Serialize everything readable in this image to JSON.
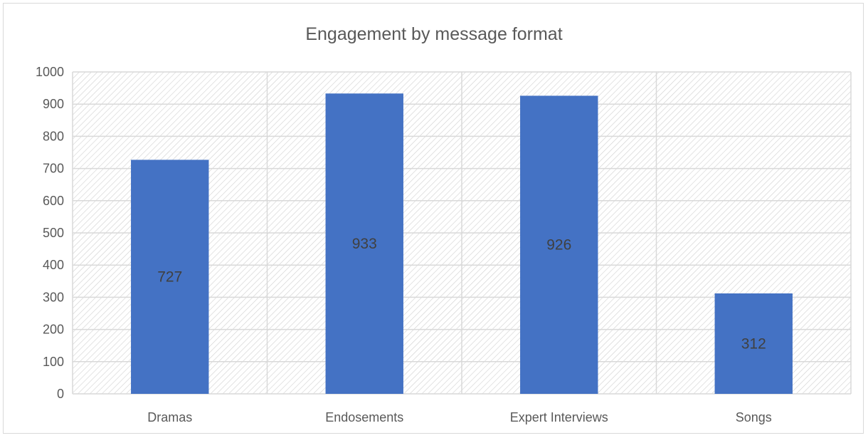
{
  "chart_data": {
    "type": "bar",
    "title": "Engagement by message format",
    "categories": [
      "Dramas",
      "Endosements",
      "Expert Interviews",
      "Songs"
    ],
    "values": [
      727,
      933,
      926,
      312
    ],
    "data_labels": [
      "727",
      "933",
      "926",
      "312"
    ],
    "ylim": [
      0,
      1000
    ],
    "yticks": [
      0,
      100,
      200,
      300,
      400,
      500,
      600,
      700,
      800,
      900,
      1000
    ],
    "grid": true,
    "plot_area_fill": "diagonal-hatch",
    "legend": "none",
    "bar_color": "#4472C4",
    "grid_color": "#d9d9d9",
    "text_color": "#595959"
  }
}
